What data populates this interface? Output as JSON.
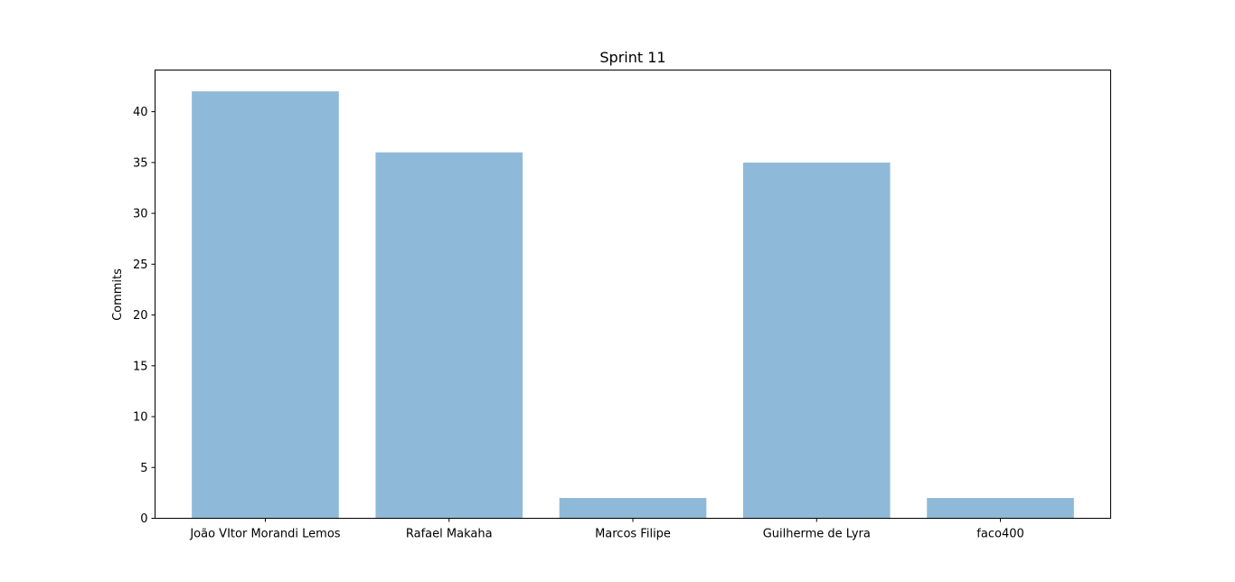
{
  "chart_data": {
    "type": "bar",
    "title": "Sprint 11",
    "xlabel": "",
    "ylabel": "Commits",
    "categories": [
      "João VItor Morandi Lemos",
      "Rafael Makaha",
      "Marcos Filipe",
      "Guilherme de Lyra",
      "faco400"
    ],
    "values": [
      42,
      36,
      2,
      35,
      2
    ],
    "ylim": [
      0,
      44.1
    ],
    "yticks": [
      0,
      5,
      10,
      15,
      20,
      25,
      30,
      35,
      40
    ],
    "grid": false,
    "bar_color": "#8fb9d8"
  }
}
